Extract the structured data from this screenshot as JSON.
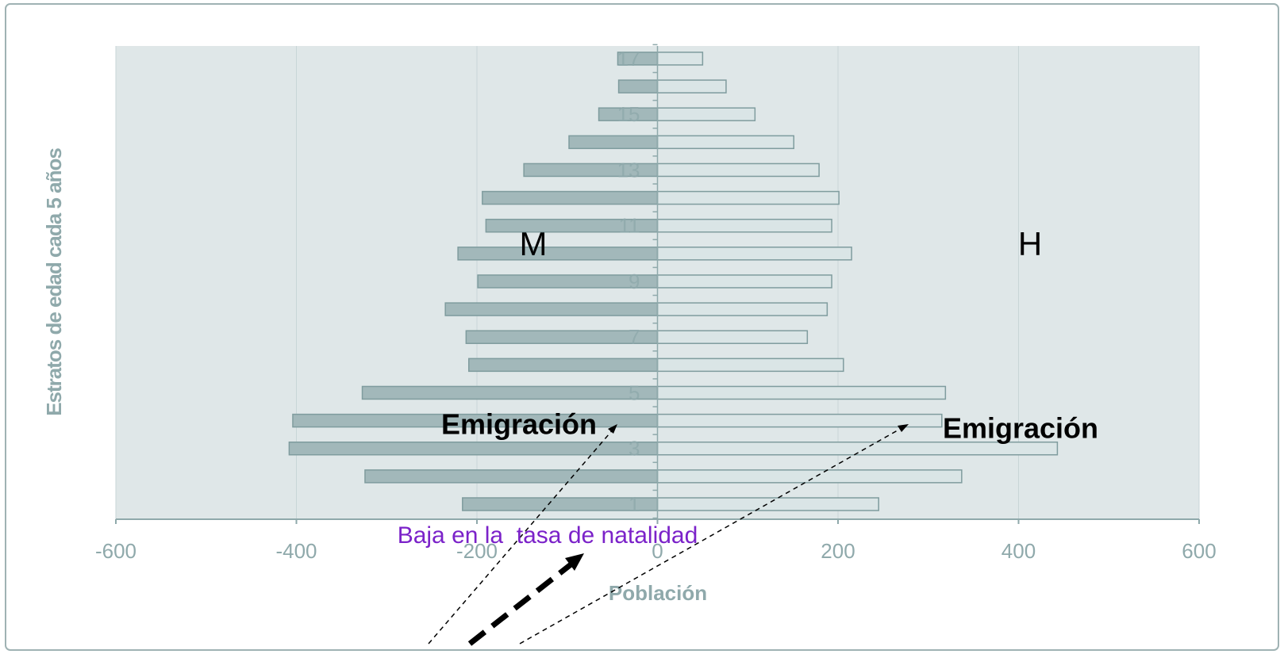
{
  "chart_data": {
    "type": "bar",
    "orientation": "horizontal",
    "xlabel": "Población",
    "ylabel": "Estratos de edad cada 5 años",
    "categories": [
      "1",
      null,
      "3",
      null,
      "5",
      null,
      "7",
      null,
      "9",
      null,
      "11",
      null,
      "13",
      null,
      "15",
      null,
      "17"
    ],
    "series": [
      {
        "name": "M",
        "color": "#a2b8ba",
        "values": [
          -216,
          -324,
          -408,
          -404,
          -327,
          -209,
          -212,
          -235,
          -199,
          -221,
          -190,
          -194,
          -148,
          -98,
          -65,
          -43,
          -44
        ]
      },
      {
        "name": "H",
        "color": "#dae5e6",
        "values": [
          245,
          337,
          443,
          315,
          319,
          206,
          166,
          188,
          193,
          215,
          193,
          201,
          179,
          151,
          108,
          76,
          50
        ]
      }
    ],
    "xlim": [
      -600,
      600
    ],
    "xticks": [
      -600,
      -400,
      -200,
      0,
      200,
      400,
      600
    ],
    "grid": true,
    "annotations": [
      "Emigración",
      "Emigración",
      "Baja en la  tasa de natalidad"
    ]
  }
}
